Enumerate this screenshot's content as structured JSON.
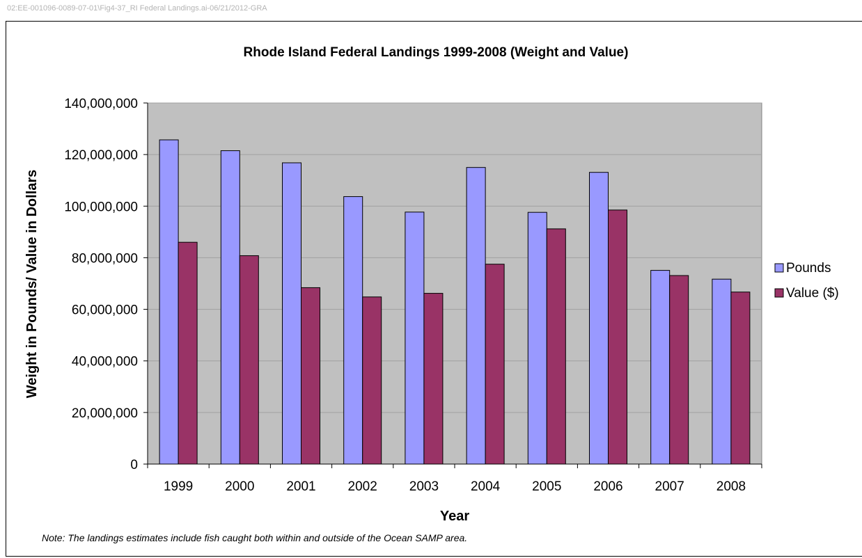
{
  "file_stamp": "02:EE-001096-0089-07-01\\Fig4-37_RI Federal Landings.ai-06/21/2012-GRA",
  "note": "Note: The landings estimates include fish caught both within and outside of the Ocean SAMP area.",
  "chart_data": {
    "type": "bar",
    "title": "Rhode Island Federal Landings 1999-2008 (Weight and Value)",
    "xlabel": "Year",
    "ylabel": "Weight in Pounds/ Value in Dollars",
    "categories": [
      "1999",
      "2000",
      "2001",
      "2002",
      "2003",
      "2004",
      "2005",
      "2006",
      "2007",
      "2008"
    ],
    "series": [
      {
        "name": "Pounds",
        "color": "#9999ff",
        "values": [
          125700000,
          121500000,
          116800000,
          103700000,
          97700000,
          115000000,
          97600000,
          113100000,
          75100000,
          71700000
        ]
      },
      {
        "name": "Value ($)",
        "color": "#993366",
        "values": [
          86000000,
          80800000,
          68400000,
          64800000,
          66200000,
          77500000,
          91200000,
          98500000,
          73100000,
          66700000
        ]
      }
    ],
    "ylim": [
      0,
      140000000
    ],
    "yticks": [
      0,
      20000000,
      40000000,
      60000000,
      80000000,
      100000000,
      120000000,
      140000000
    ],
    "ytick_labels": [
      "0",
      "20,000,000",
      "40,000,000",
      "60,000,000",
      "80,000,000",
      "100,000,000",
      "120,000,000",
      "140,000,000"
    ],
    "plot_background": "#c0c0c0",
    "grid": true,
    "legend_position": "right"
  }
}
